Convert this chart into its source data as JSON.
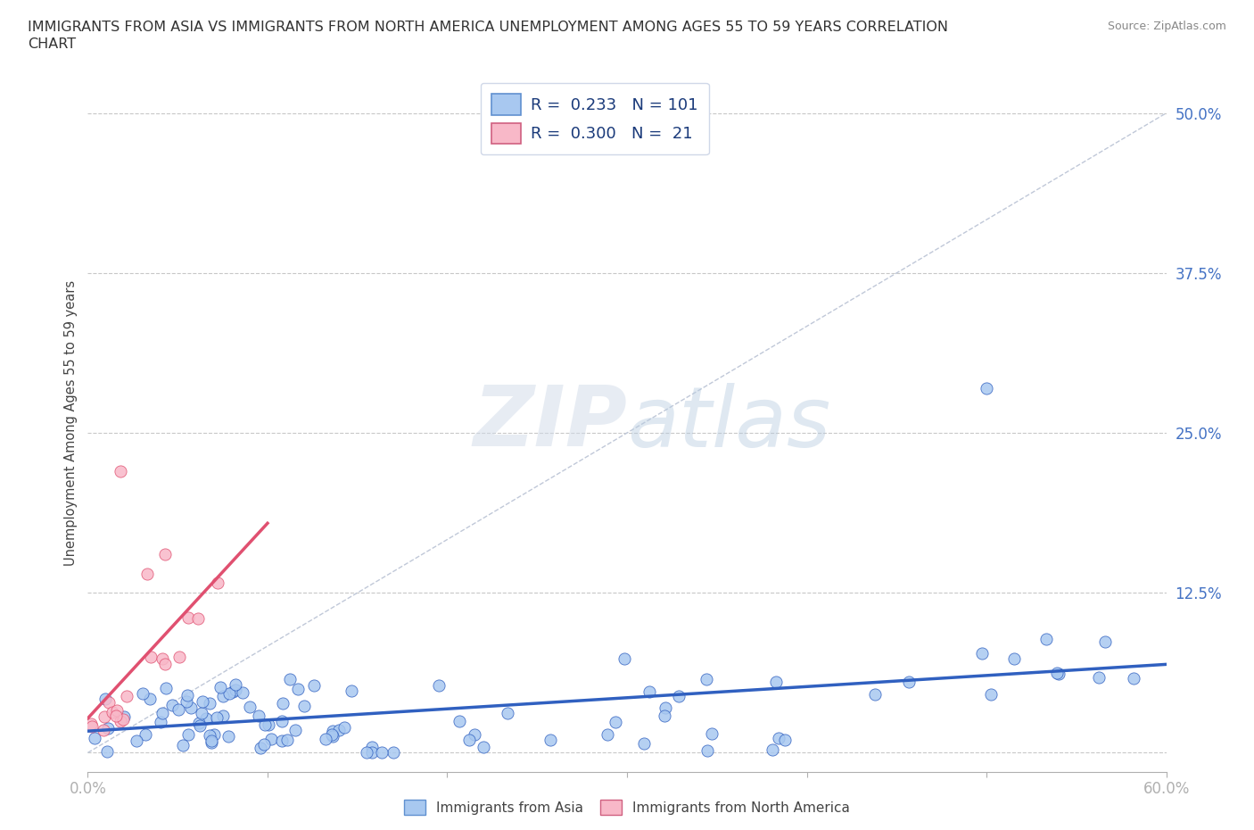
{
  "title_line1": "IMMIGRANTS FROM ASIA VS IMMIGRANTS FROM NORTH AMERICA UNEMPLOYMENT AMONG AGES 55 TO 59 YEARS CORRELATION",
  "title_line2": "CHART",
  "source": "Source: ZipAtlas.com",
  "ylabel": "Unemployment Among Ages 55 to 59 years",
  "xlim": [
    0.0,
    0.6
  ],
  "ylim": [
    -0.015,
    0.53
  ],
  "R_asia": 0.233,
  "N_asia": 101,
  "R_na": 0.3,
  "N_na": 21,
  "color_asia": "#a8c8f0",
  "color_na": "#f8b8c8",
  "line_color_asia": "#3060c0",
  "line_color_na": "#e05070",
  "tick_color": "#4472c4",
  "background_color": "#ffffff",
  "asia_x": [
    0.005,
    0.008,
    0.01,
    0.012,
    0.015,
    0.018,
    0.02,
    0.022,
    0.025,
    0.028,
    0.03,
    0.032,
    0.035,
    0.038,
    0.04,
    0.042,
    0.045,
    0.048,
    0.05,
    0.052,
    0.055,
    0.058,
    0.06,
    0.062,
    0.065,
    0.068,
    0.07,
    0.075,
    0.08,
    0.082,
    0.085,
    0.088,
    0.09,
    0.092,
    0.095,
    0.098,
    0.1,
    0.105,
    0.11,
    0.115,
    0.12,
    0.125,
    0.13,
    0.135,
    0.14,
    0.145,
    0.15,
    0.155,
    0.16,
    0.165,
    0.17,
    0.175,
    0.18,
    0.185,
    0.19,
    0.195,
    0.2,
    0.21,
    0.22,
    0.23,
    0.24,
    0.25,
    0.26,
    0.27,
    0.28,
    0.29,
    0.3,
    0.31,
    0.32,
    0.33,
    0.34,
    0.35,
    0.36,
    0.37,
    0.38,
    0.39,
    0.4,
    0.41,
    0.42,
    0.43,
    0.44,
    0.45,
    0.46,
    0.47,
    0.48,
    0.49,
    0.5,
    0.51,
    0.52,
    0.53,
    0.54,
    0.55,
    0.56,
    0.57,
    0.58,
    0.59,
    0.598,
    0.412,
    0.508,
    0.478,
    0.552
  ],
  "asia_y": [
    0.02,
    0.01,
    0.03,
    0.015,
    0.025,
    0.01,
    0.04,
    0.02,
    0.03,
    0.015,
    0.025,
    0.035,
    0.01,
    0.02,
    0.04,
    0.015,
    0.025,
    0.035,
    0.01,
    0.03,
    0.02,
    0.04,
    0.015,
    0.025,
    0.035,
    0.01,
    0.045,
    0.02,
    0.03,
    0.015,
    0.05,
    0.025,
    0.035,
    0.01,
    0.04,
    0.02,
    0.03,
    0.015,
    0.05,
    0.025,
    0.035,
    0.045,
    0.02,
    0.03,
    0.04,
    0.015,
    0.05,
    0.025,
    0.055,
    0.035,
    0.045,
    0.02,
    0.06,
    0.03,
    0.04,
    0.05,
    0.025,
    0.065,
    0.035,
    0.045,
    0.055,
    0.03,
    0.06,
    0.04,
    0.05,
    0.035,
    0.065,
    0.045,
    0.055,
    0.03,
    0.06,
    0.04,
    0.07,
    0.05,
    0.06,
    0.035,
    0.065,
    0.075,
    0.055,
    0.065,
    0.075,
    0.05,
    0.06,
    0.07,
    0.04,
    0.08,
    0.07,
    0.06,
    0.08,
    0.07,
    0.08,
    0.06,
    0.07,
    0.08,
    0.075,
    0.065,
    0.085,
    0.005,
    0.0,
    0.0,
    0.005
  ],
  "na_x": [
    0.002,
    0.005,
    0.008,
    0.01,
    0.012,
    0.015,
    0.018,
    0.02,
    0.022,
    0.025,
    0.028,
    0.03,
    0.035,
    0.038,
    0.04,
    0.045,
    0.05,
    0.055,
    0.06,
    0.065,
    0.02
  ],
  "na_y": [
    0.015,
    0.02,
    0.01,
    0.02,
    0.03,
    0.025,
    0.035,
    0.03,
    0.05,
    0.02,
    0.035,
    0.04,
    0.045,
    0.06,
    0.05,
    0.06,
    0.02,
    0.055,
    0.025,
    0.05,
    0.22
  ]
}
